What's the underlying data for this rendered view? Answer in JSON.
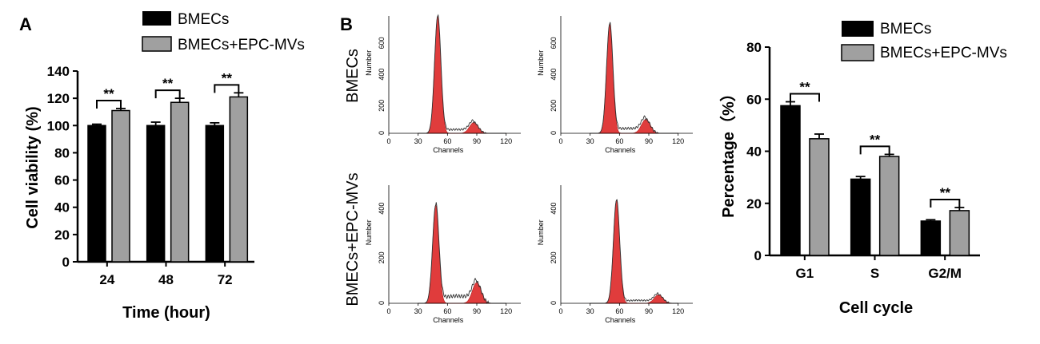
{
  "colors": {
    "series1": "#000000",
    "series2": "#a0a0a0",
    "peak": "#e03c3c"
  },
  "panelA": {
    "label": "A",
    "chart_data": {
      "type": "bar",
      "xlabel": "Time (hour)",
      "ylabel": "Cell viability (%)",
      "ylim": [
        0,
        140
      ],
      "yticks": [
        "0",
        "20",
        "40",
        "60",
        "80",
        "100",
        "120",
        "140"
      ],
      "categories": [
        "24",
        "48",
        "72"
      ],
      "series": [
        {
          "name": "BMECs",
          "values": [
            100,
            100,
            100
          ],
          "errors": [
            1,
            2.5,
            2
          ]
        },
        {
          "name": "BMECs+EPC-MVs",
          "values": [
            111,
            117,
            121
          ],
          "errors": [
            1.5,
            3,
            3
          ]
        }
      ],
      "significance": [
        "**",
        "**",
        "**"
      ],
      "legend_position": "top"
    }
  },
  "panelB": {
    "label": "B",
    "rows": [
      "BMECs",
      "BMECs+EPC-MVs"
    ],
    "histograms": [
      {
        "xlabel": "Channels",
        "ylabel": "Number",
        "yticks": [
          "0",
          "200",
          "400",
          "600"
        ],
        "xticks": [
          "0",
          "30",
          "60",
          "90",
          "120"
        ],
        "ymax": 750,
        "g1_peak": 750,
        "g2_peak": 70,
        "g1_center": 50,
        "g2_center": 87
      },
      {
        "xlabel": "Channels",
        "ylabel": "Number",
        "yticks": [
          "0",
          "200",
          "400",
          "600"
        ],
        "xticks": [
          "0",
          "30",
          "60",
          "90",
          "120"
        ],
        "ymax": 750,
        "g1_peak": 700,
        "g2_peak": 90,
        "g1_center": 50,
        "g2_center": 87
      },
      {
        "xlabel": "Channels",
        "ylabel": "Number",
        "yticks": [
          "0",
          "200",
          "400"
        ],
        "xticks": [
          "0",
          "30",
          "60",
          "90",
          "120"
        ],
        "ymax": 480,
        "g1_peak": 400,
        "g2_peak": 85,
        "g1_center": 48,
        "g2_center": 90
      },
      {
        "xlabel": "Channels",
        "ylabel": "Number",
        "yticks": [
          "0",
          "200",
          "400"
        ],
        "xticks": [
          "0",
          "30",
          "60",
          "90",
          "120"
        ],
        "ymax": 480,
        "g1_peak": 420,
        "g2_peak": 35,
        "g1_center": 57,
        "g2_center": 100
      }
    ]
  },
  "panelC": {
    "chart_data": {
      "type": "bar",
      "xlabel": "Cell cycle",
      "ylabel": "Percentage（%）",
      "ylim": [
        0,
        80
      ],
      "yticks": [
        "0",
        "20",
        "40",
        "60",
        "80"
      ],
      "categories": [
        "G1",
        "S",
        "G2/M"
      ],
      "series": [
        {
          "name": "BMECs",
          "values": [
            57.5,
            29.3,
            13.2
          ],
          "errors": [
            1.5,
            1,
            0.5
          ]
        },
        {
          "name": "BMECs+EPC-MVs",
          "values": [
            44.8,
            38,
            17.2
          ],
          "errors": [
            1.8,
            0.8,
            1.2
          ]
        }
      ],
      "significance": [
        "**",
        "**",
        "**"
      ],
      "legend_position": "top-right"
    }
  }
}
